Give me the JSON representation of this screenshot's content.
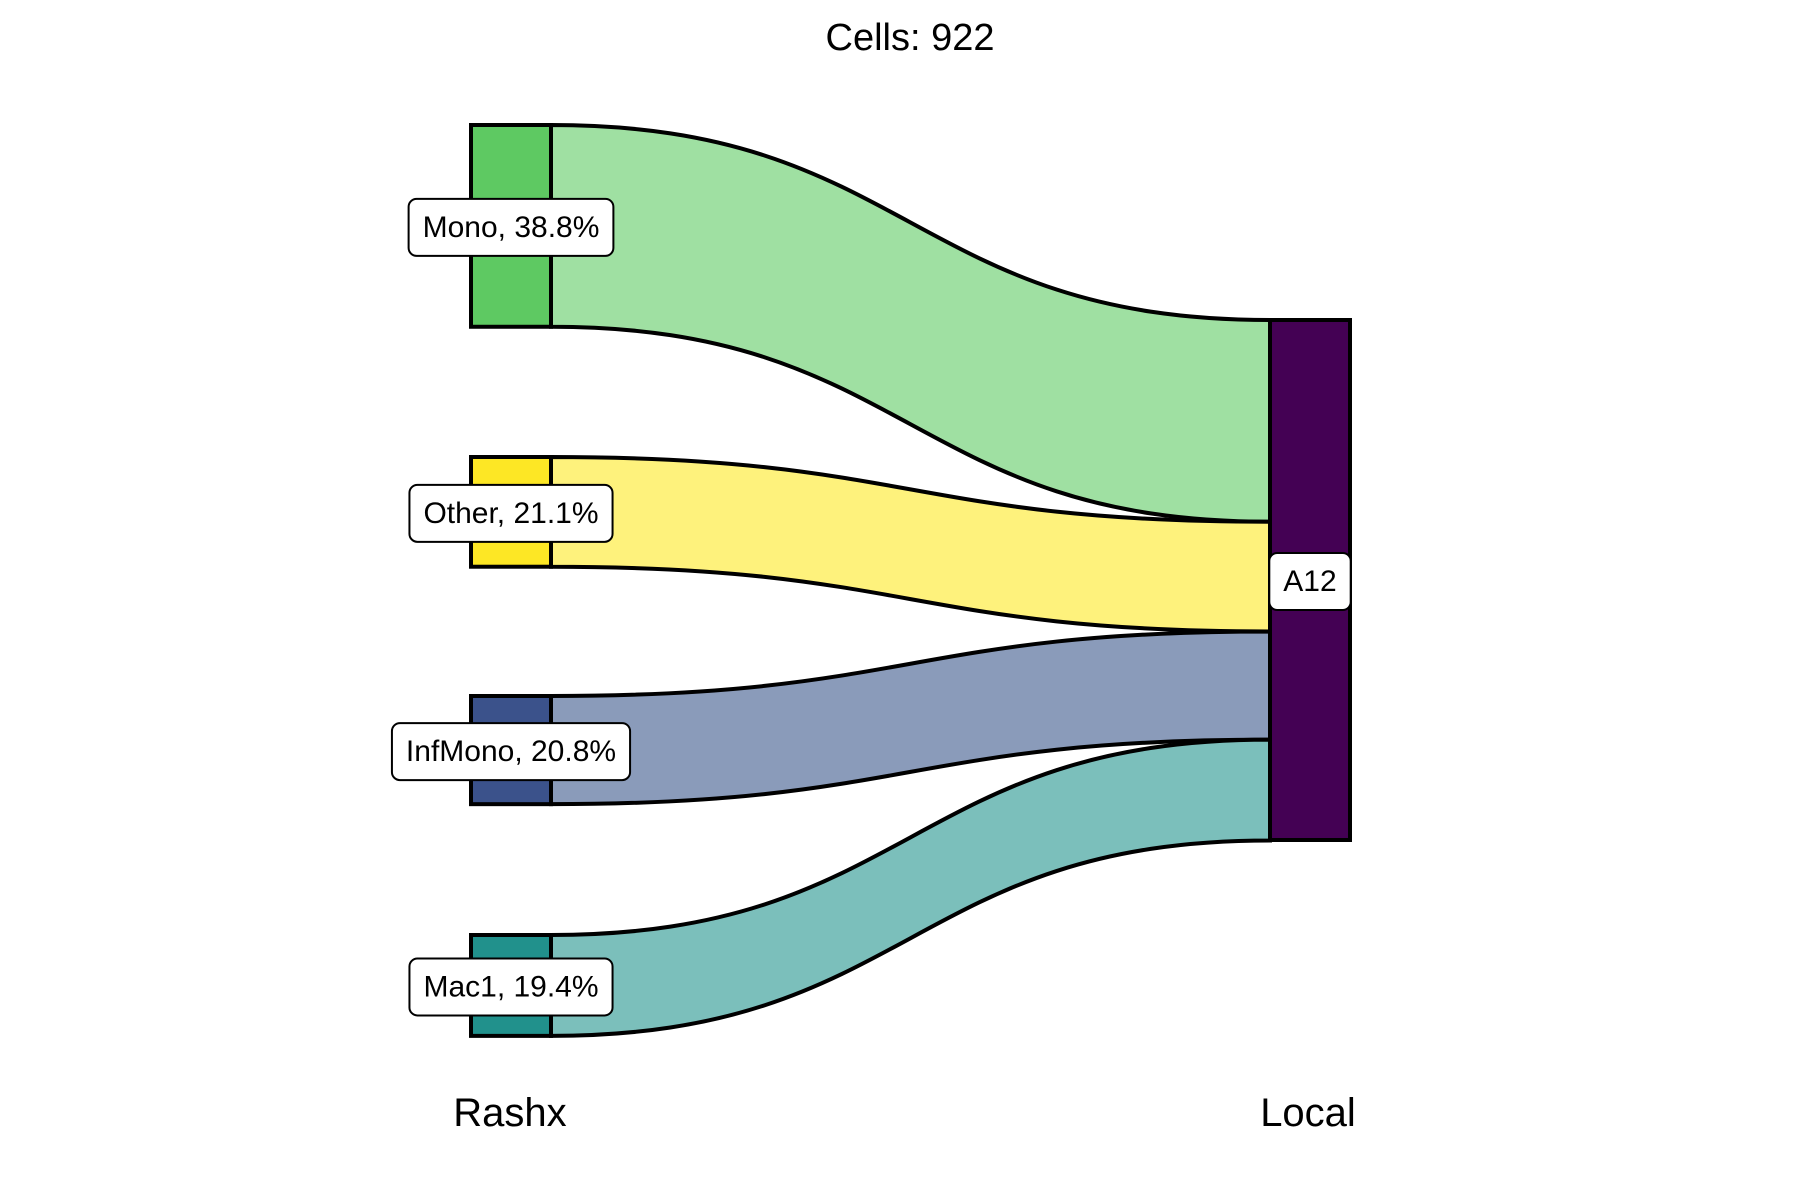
{
  "chart_data": {
    "type": "sankey",
    "title": "Cells:  922",
    "total_cells": 922,
    "axes": [
      {
        "label": "Rashx"
      },
      {
        "label": "Local"
      }
    ],
    "source_nodes": [
      {
        "name": "Mono",
        "percent": 38.8,
        "label": "Mono, 38.8%",
        "color": "#5ec962",
        "flow_color": "#9fe0a2"
      },
      {
        "name": "Other",
        "percent": 21.1,
        "label": "Other, 21.1%",
        "color": "#fde725",
        "flow_color": "#fef27c"
      },
      {
        "name": "InfMono",
        "percent": 20.8,
        "label": "InfMono, 20.8%",
        "color": "#3b528b",
        "flow_color": "#8a9bba"
      },
      {
        "name": "Mac1",
        "percent": 19.4,
        "label": "Mac1, 19.4%",
        "color": "#21918c",
        "flow_color": "#7bbfbb"
      }
    ],
    "target_nodes": [
      {
        "name": "A12",
        "percent": 100,
        "label": "A12",
        "color": "#440154"
      }
    ],
    "flows": [
      {
        "source": "Mono",
        "target": "A12",
        "percent": 38.8
      },
      {
        "source": "Other",
        "target": "A12",
        "percent": 21.1
      },
      {
        "source": "InfMono",
        "target": "A12",
        "percent": 20.8
      },
      {
        "source": "Mac1",
        "target": "A12",
        "percent": 19.4
      }
    ]
  }
}
